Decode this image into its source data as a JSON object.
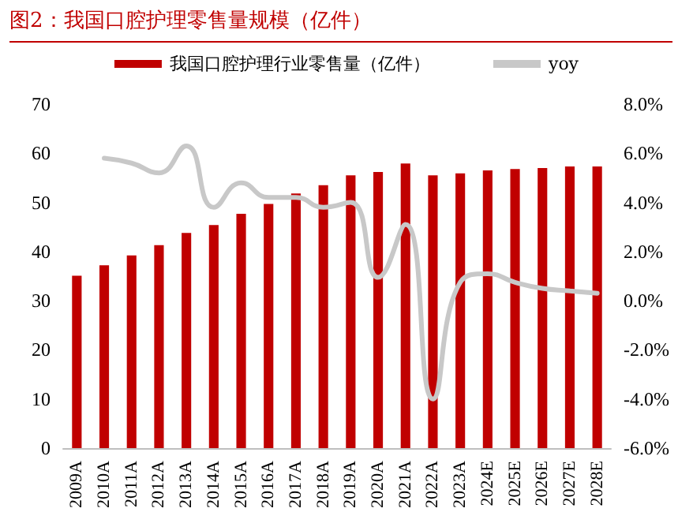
{
  "chart_data": {
    "type": "bar",
    "title": "图2：我国口腔护理零售量规模（亿件）",
    "categories": [
      "2009A",
      "2010A",
      "2011A",
      "2012A",
      "2013A",
      "2014A",
      "2015A",
      "2016A",
      "2017A",
      "2018A",
      "2019A",
      "2020A",
      "2021A",
      "2022A",
      "2023A",
      "2024E",
      "2025E",
      "2026E",
      "2027E",
      "2028E"
    ],
    "series": [
      {
        "name": "我国口腔护理行业零售量（亿件）",
        "color": "#c00000",
        "values": [
          35.1,
          37.2,
          39.2,
          41.3,
          43.8,
          45.4,
          47.7,
          49.7,
          51.8,
          53.5,
          55.5,
          56.2,
          57.9,
          55.5,
          55.9,
          56.5,
          56.8,
          57.0,
          57.3,
          57.3
        ]
      },
      {
        "name": "yoy",
        "type": "line",
        "axis": "y2",
        "color": "#c8c8c8",
        "values": [
          null,
          5.8,
          5.6,
          5.2,
          6.3,
          3.8,
          4.8,
          4.2,
          4.2,
          3.8,
          4.0,
          0.95,
          3.1,
          -4.0,
          0.75,
          1.1,
          0.75,
          0.5,
          0.4,
          0.3
        ]
      }
    ],
    "ylim": [
      0,
      70
    ],
    "yticks": [
      0,
      10,
      20,
      30,
      40,
      50,
      60,
      70
    ],
    "y2lim": [
      -6,
      8
    ],
    "y2ticks": [
      {
        "value": -6,
        "label": "-6.0%"
      },
      {
        "value": -4,
        "label": "-4.0%"
      },
      {
        "value": -2,
        "label": "-2.0%"
      },
      {
        "value": 0,
        "label": "0.0%"
      },
      {
        "value": 2,
        "label": "2.0%"
      },
      {
        "value": 4,
        "label": "4.0%"
      },
      {
        "value": 6,
        "label": "6.0%"
      },
      {
        "value": 8,
        "label": "8.0%"
      }
    ],
    "grid": false,
    "legend": "top",
    "marker": "none",
    "line_style": "solid"
  }
}
